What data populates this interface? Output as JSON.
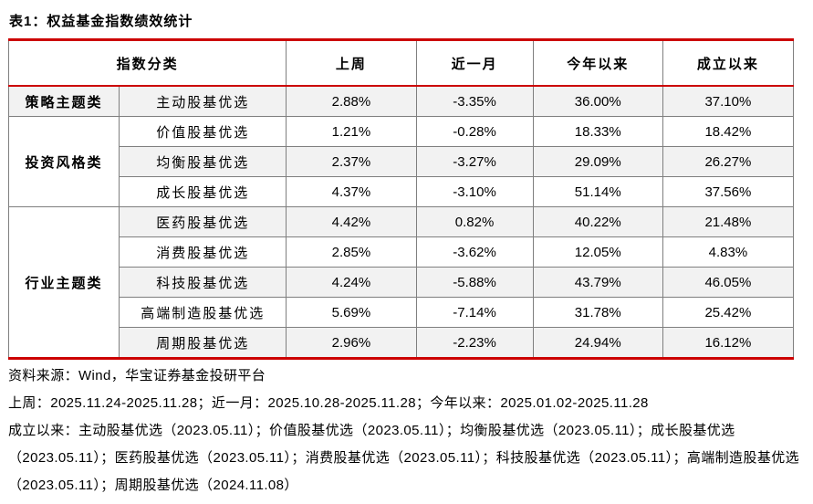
{
  "title": "表1：权益基金指数绩效统计",
  "colors": {
    "accent_red": "#cc0000",
    "grid_gray": "#7f7f7f",
    "row_stripe": "#f2f2f2"
  },
  "table": {
    "headers": [
      "指数分类",
      "上周",
      "近一月",
      "今年以来",
      "成立以来"
    ],
    "groups": [
      {
        "category": "策略主题类",
        "rows": [
          {
            "name": "主动股基优选",
            "values": [
              "2.88%",
              "-3.35%",
              "36.00%",
              "37.10%"
            ]
          }
        ]
      },
      {
        "category": "投资风格类",
        "rows": [
          {
            "name": "价值股基优选",
            "values": [
              "1.21%",
              "-0.28%",
              "18.33%",
              "18.42%"
            ]
          },
          {
            "name": "均衡股基优选",
            "values": [
              "2.37%",
              "-3.27%",
              "29.09%",
              "26.27%"
            ]
          },
          {
            "name": "成长股基优选",
            "values": [
              "4.37%",
              "-3.10%",
              "51.14%",
              "37.56%"
            ]
          }
        ]
      },
      {
        "category": "行业主题类",
        "rows": [
          {
            "name": "医药股基优选",
            "values": [
              "4.42%",
              "0.82%",
              "40.22%",
              "21.48%"
            ]
          },
          {
            "name": "消费股基优选",
            "values": [
              "2.85%",
              "-3.62%",
              "12.05%",
              "4.83%"
            ]
          },
          {
            "name": "科技股基优选",
            "values": [
              "4.24%",
              "-5.88%",
              "43.79%",
              "46.05%"
            ]
          },
          {
            "name": "高端制造股基优选",
            "values": [
              "5.69%",
              "-7.14%",
              "31.78%",
              "25.42%"
            ]
          },
          {
            "name": "周期股基优选",
            "values": [
              "2.96%",
              "-2.23%",
              "24.94%",
              "16.12%"
            ]
          }
        ]
      }
    ]
  },
  "footer": {
    "source": "资料来源：Wind，华宝证券基金投研平台",
    "periods": "上周：2025.11.24-2025.11.28；近一月：2025.10.28-2025.11.28；今年以来：2025.01.02-2025.11.28",
    "inception": "成立以来：主动股基优选（2023.05.11）；价值股基优选（2023.05.11）；均衡股基优选（2023.05.11）；成长股基优选（2023.05.11）；医药股基优选（2023.05.11）；消费股基优选（2023.05.11）；科技股基优选（2023.05.11）；高端制造股基优选（2023.05.11）；周期股基优选（2024.11.08）"
  }
}
